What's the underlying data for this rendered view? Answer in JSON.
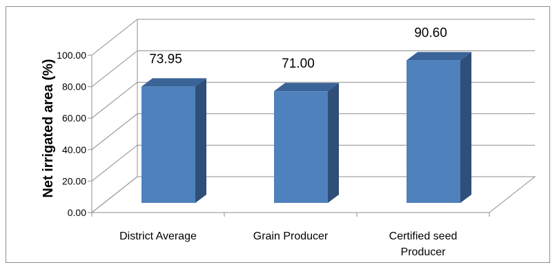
{
  "chart_data": {
    "type": "bar",
    "title": "",
    "xlabel": "",
    "ylabel": "Net irrigated area (%)",
    "categories": [
      "District Average",
      "Grain Producer",
      "Certified seed Producer"
    ],
    "category_lines": [
      [
        "District Average"
      ],
      [
        "Grain Producer"
      ],
      [
        "Certified seed",
        "Producer"
      ]
    ],
    "values": [
      73.95,
      71.0,
      90.6
    ],
    "value_labels": [
      "73.95",
      "71.00",
      "90.60"
    ],
    "ylim": [
      0,
      100
    ],
    "yticks": [
      "0.00",
      "20.00",
      "40.00",
      "60.00",
      "80.00",
      "100.00"
    ],
    "grid": true,
    "legend": "none",
    "style": "3d-column",
    "colors": {
      "bar_front": "#4f81bd",
      "bar_side": "#2f4f78",
      "bar_top": "#3a6498",
      "grid": "#8c8c8c",
      "floor": "#8c8c8c"
    }
  }
}
